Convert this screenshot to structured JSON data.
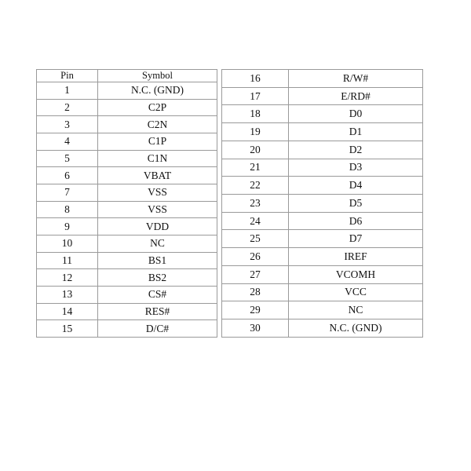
{
  "table_left": {
    "headers": {
      "pin": "Pin",
      "symbol": "Symbol"
    },
    "rows": [
      {
        "pin": "1",
        "symbol": "N.C. (GND)"
      },
      {
        "pin": "2",
        "symbol": "C2P"
      },
      {
        "pin": "3",
        "symbol": "C2N"
      },
      {
        "pin": "4",
        "symbol": "C1P"
      },
      {
        "pin": "5",
        "symbol": "C1N"
      },
      {
        "pin": "6",
        "symbol": "VBAT"
      },
      {
        "pin": "7",
        "symbol": "VSS"
      },
      {
        "pin": "8",
        "symbol": "VSS"
      },
      {
        "pin": "9",
        "symbol": "VDD"
      },
      {
        "pin": "10",
        "symbol": "NC"
      },
      {
        "pin": "11",
        "symbol": "BS1"
      },
      {
        "pin": "12",
        "symbol": "BS2"
      },
      {
        "pin": "13",
        "symbol": "CS#"
      },
      {
        "pin": "14",
        "symbol": "RES#"
      },
      {
        "pin": "15",
        "symbol": "D/C#"
      }
    ]
  },
  "table_right": {
    "rows": [
      {
        "pin": "16",
        "symbol": "R/W#"
      },
      {
        "pin": "17",
        "symbol": "E/RD#"
      },
      {
        "pin": "18",
        "symbol": "D0"
      },
      {
        "pin": "19",
        "symbol": "D1"
      },
      {
        "pin": "20",
        "symbol": "D2"
      },
      {
        "pin": "21",
        "symbol": "D3"
      },
      {
        "pin": "22",
        "symbol": "D4"
      },
      {
        "pin": "23",
        "symbol": "D5"
      },
      {
        "pin": "24",
        "symbol": "D6"
      },
      {
        "pin": "25",
        "symbol": "D7"
      },
      {
        "pin": "26",
        "symbol": "IREF"
      },
      {
        "pin": "27",
        "symbol": "VCOMH"
      },
      {
        "pin": "28",
        "symbol": "VCC"
      },
      {
        "pin": "29",
        "symbol": "NC"
      },
      {
        "pin": "30",
        "symbol": "N.C. (GND)"
      }
    ]
  }
}
